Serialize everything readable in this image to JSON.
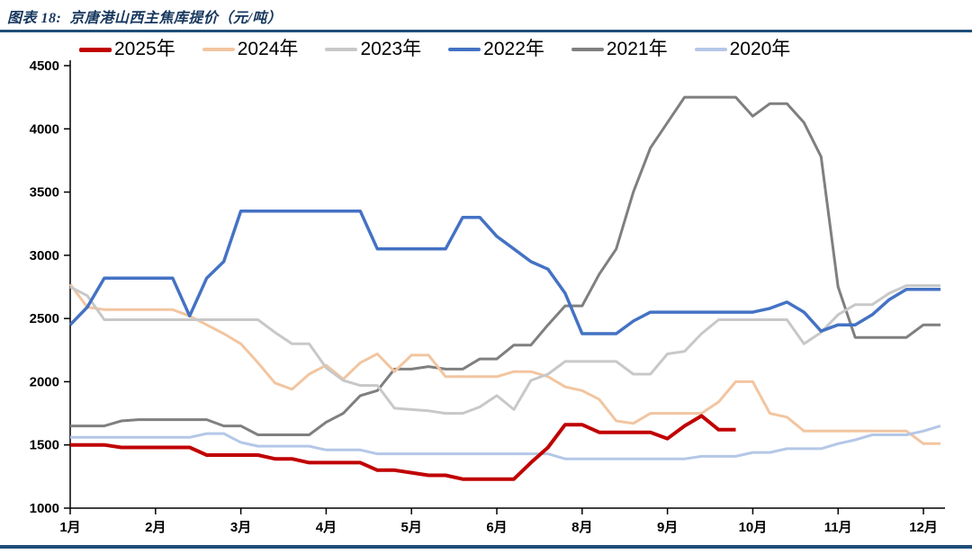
{
  "header": {
    "title": "图表 18:  京唐港山西主焦库提价（元/吨）"
  },
  "chart_data": {
    "type": "line",
    "title": "京唐港山西主焦库提价（元/吨）",
    "ylabel": "元/吨",
    "xlabel": "",
    "x_unit": "week-of-year (52 weeks)",
    "ylim": [
      1000,
      4500
    ],
    "y_ticks": [
      4500,
      4000,
      3500,
      3000,
      2500,
      2000,
      1500,
      1000
    ],
    "x_tick_labels": [
      "1月",
      "2月",
      "3月",
      "4月",
      "5月",
      "6月",
      "8月",
      "9月",
      "10月",
      "11月",
      "12月"
    ],
    "x_tick_weeks": [
      1,
      6,
      11,
      16,
      21,
      26,
      31,
      36,
      41,
      46,
      51
    ],
    "grid": false,
    "legend_position": "top",
    "series": [
      {
        "name": "2025年",
        "color": "#c00000",
        "width": 4,
        "values": [
          1500,
          1500,
          1500,
          1480,
          1480,
          1480,
          1480,
          1480,
          1420,
          1420,
          1420,
          1420,
          1390,
          1390,
          1360,
          1360,
          1360,
          1360,
          1300,
          1300,
          1280,
          1260,
          1260,
          1230,
          1230,
          1230,
          1230,
          1360,
          1480,
          1660,
          1660,
          1600,
          1600,
          1600,
          1600,
          1550,
          1650,
          1730,
          1620,
          1620
        ]
      },
      {
        "name": "2024年",
        "color": "#f2c5a0",
        "width": 3,
        "values": [
          2770,
          2590,
          2570,
          2570,
          2570,
          2570,
          2570,
          2520,
          2450,
          2380,
          2300,
          2150,
          1990,
          1940,
          2060,
          2130,
          2020,
          2150,
          2220,
          2080,
          2210,
          2210,
          2040,
          2040,
          2040,
          2040,
          2080,
          2080,
          2040,
          1960,
          1930,
          1860,
          1690,
          1670,
          1750,
          1750,
          1750,
          1750,
          1840,
          2000,
          2000,
          1750,
          1720,
          1610,
          1610,
          1610,
          1610,
          1610,
          1610,
          1610,
          1510,
          1510
        ]
      },
      {
        "name": "2023年",
        "color": "#c8c8c8",
        "width": 3,
        "values": [
          2750,
          2680,
          2490,
          2490,
          2490,
          2490,
          2490,
          2490,
          2490,
          2490,
          2490,
          2490,
          2390,
          2300,
          2300,
          2110,
          2010,
          1970,
          1970,
          1790,
          1780,
          1770,
          1750,
          1750,
          1800,
          1890,
          1780,
          2010,
          2060,
          2160,
          2160,
          2160,
          2160,
          2060,
          2060,
          2220,
          2240,
          2380,
          2490,
          2490,
          2490,
          2490,
          2490,
          2300,
          2390,
          2530,
          2610,
          2610,
          2700,
          2760,
          2760,
          2760
        ]
      },
      {
        "name": "2022年",
        "color": "#4472c4",
        "width": 3.5,
        "values": [
          2450,
          2590,
          2820,
          2820,
          2820,
          2820,
          2820,
          2520,
          2820,
          2950,
          3350,
          3350,
          3350,
          3350,
          3350,
          3350,
          3350,
          3350,
          3050,
          3050,
          3050,
          3050,
          3050,
          3300,
          3300,
          3150,
          3050,
          2950,
          2890,
          2700,
          2380,
          2380,
          2380,
          2480,
          2550,
          2550,
          2550,
          2550,
          2550,
          2550,
          2550,
          2580,
          2630,
          2550,
          2400,
          2450,
          2450,
          2530,
          2650,
          2730,
          2730,
          2730
        ]
      },
      {
        "name": "2021年",
        "color": "#7f7f7f",
        "width": 3,
        "values": [
          1650,
          1650,
          1650,
          1690,
          1700,
          1700,
          1700,
          1700,
          1700,
          1650,
          1650,
          1580,
          1580,
          1580,
          1580,
          1680,
          1750,
          1890,
          1930,
          2100,
          2100,
          2120,
          2100,
          2100,
          2180,
          2180,
          2290,
          2290,
          2450,
          2600,
          2600,
          2850,
          3050,
          3500,
          3850,
          4050,
          4250,
          4250,
          4250,
          4250,
          4100,
          4200,
          4200,
          4050,
          3780,
          2750,
          2350,
          2350,
          2350,
          2350,
          2450,
          2450
        ]
      },
      {
        "name": "2020年",
        "color": "#b4c7e7",
        "width": 3,
        "values": [
          1560,
          1560,
          1560,
          1560,
          1560,
          1560,
          1560,
          1560,
          1590,
          1590,
          1520,
          1490,
          1490,
          1490,
          1490,
          1460,
          1460,
          1460,
          1430,
          1430,
          1430,
          1430,
          1430,
          1430,
          1430,
          1430,
          1430,
          1430,
          1430,
          1390,
          1390,
          1390,
          1390,
          1390,
          1390,
          1390,
          1390,
          1410,
          1410,
          1410,
          1440,
          1440,
          1470,
          1470,
          1470,
          1510,
          1540,
          1580,
          1580,
          1580,
          1610,
          1650
        ]
      }
    ],
    "draw_order": [
      "2021年",
      "2024年",
      "2023年",
      "2020年",
      "2022年",
      "2025年"
    ]
  }
}
